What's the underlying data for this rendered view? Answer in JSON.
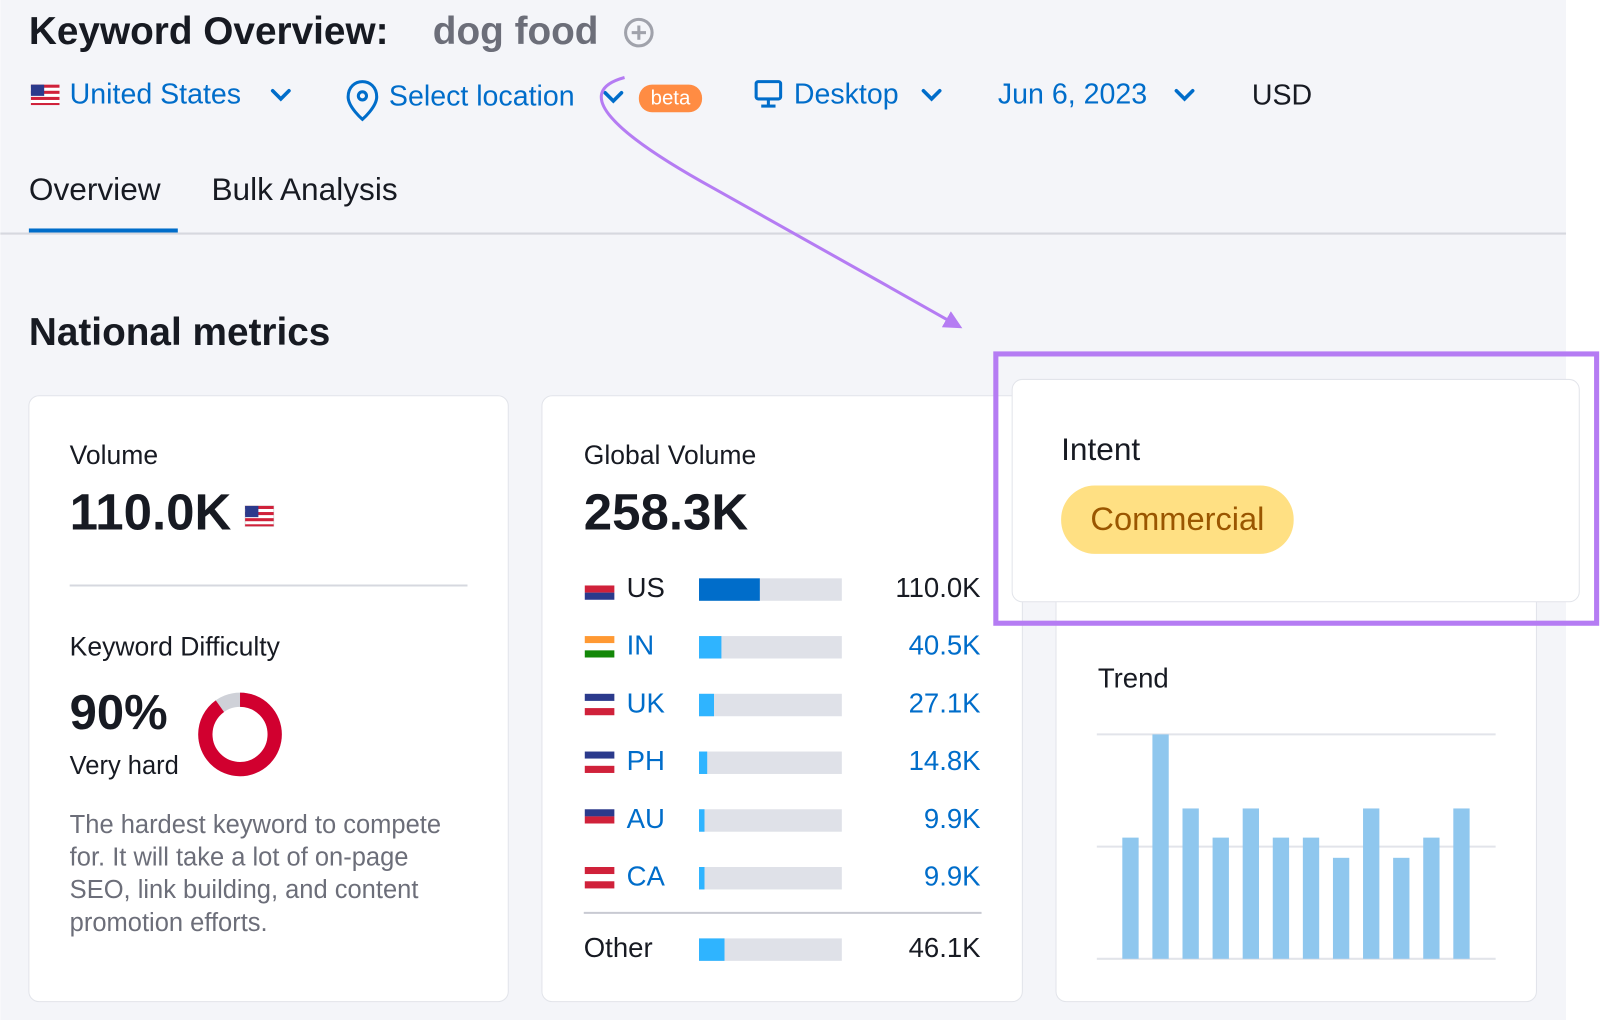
{
  "header": {
    "label": "Keyword Overview:",
    "keyword": "dog food"
  },
  "filters": {
    "country": "United States",
    "location": "Select location",
    "badge": "beta",
    "device": "Desktop",
    "date": "Jun 6, 2023",
    "currency": "USD"
  },
  "tabs": [
    "Overview",
    "Bulk Analysis"
  ],
  "section_title": "National metrics",
  "volume": {
    "label": "Volume",
    "value": "110.0K"
  },
  "difficulty": {
    "label": "Keyword Difficulty",
    "value": 90,
    "value_label": "90%",
    "level": "Very hard",
    "description": [
      "The hardest keyword to compete",
      "for. It will take a lot of on-page",
      "SEO, link building, and content",
      "promotion efforts."
    ]
  },
  "global_volume": {
    "label": "Global Volume",
    "value": 258300,
    "value_label": "258.3K",
    "countries": [
      {
        "code": "US",
        "value": 110000,
        "value_label": "110.0K"
      },
      {
        "code": "IN",
        "value": 40500,
        "value_label": "40.5K"
      },
      {
        "code": "UK",
        "value": 27100,
        "value_label": "27.1K"
      },
      {
        "code": "PH",
        "value": 14800,
        "value_label": "14.8K"
      },
      {
        "code": "AU",
        "value": 9900,
        "value_label": "9.9K"
      },
      {
        "code": "CA",
        "value": 9900,
        "value_label": "9.9K"
      }
    ],
    "other": {
      "label": "Other",
      "value": 46100,
      "value_label": "46.1K"
    }
  },
  "intent": {
    "label": "Intent",
    "value": "Commercial"
  },
  "trend": {
    "label": "Trend",
    "values": [
      0.54,
      1.0,
      0.67,
      0.54,
      0.67,
      0.54,
      0.54,
      0.45,
      0.67,
      0.45,
      0.54,
      0.67
    ],
    "ylim": [
      0,
      1
    ],
    "yticks": [
      0,
      0.5,
      1
    ]
  }
}
